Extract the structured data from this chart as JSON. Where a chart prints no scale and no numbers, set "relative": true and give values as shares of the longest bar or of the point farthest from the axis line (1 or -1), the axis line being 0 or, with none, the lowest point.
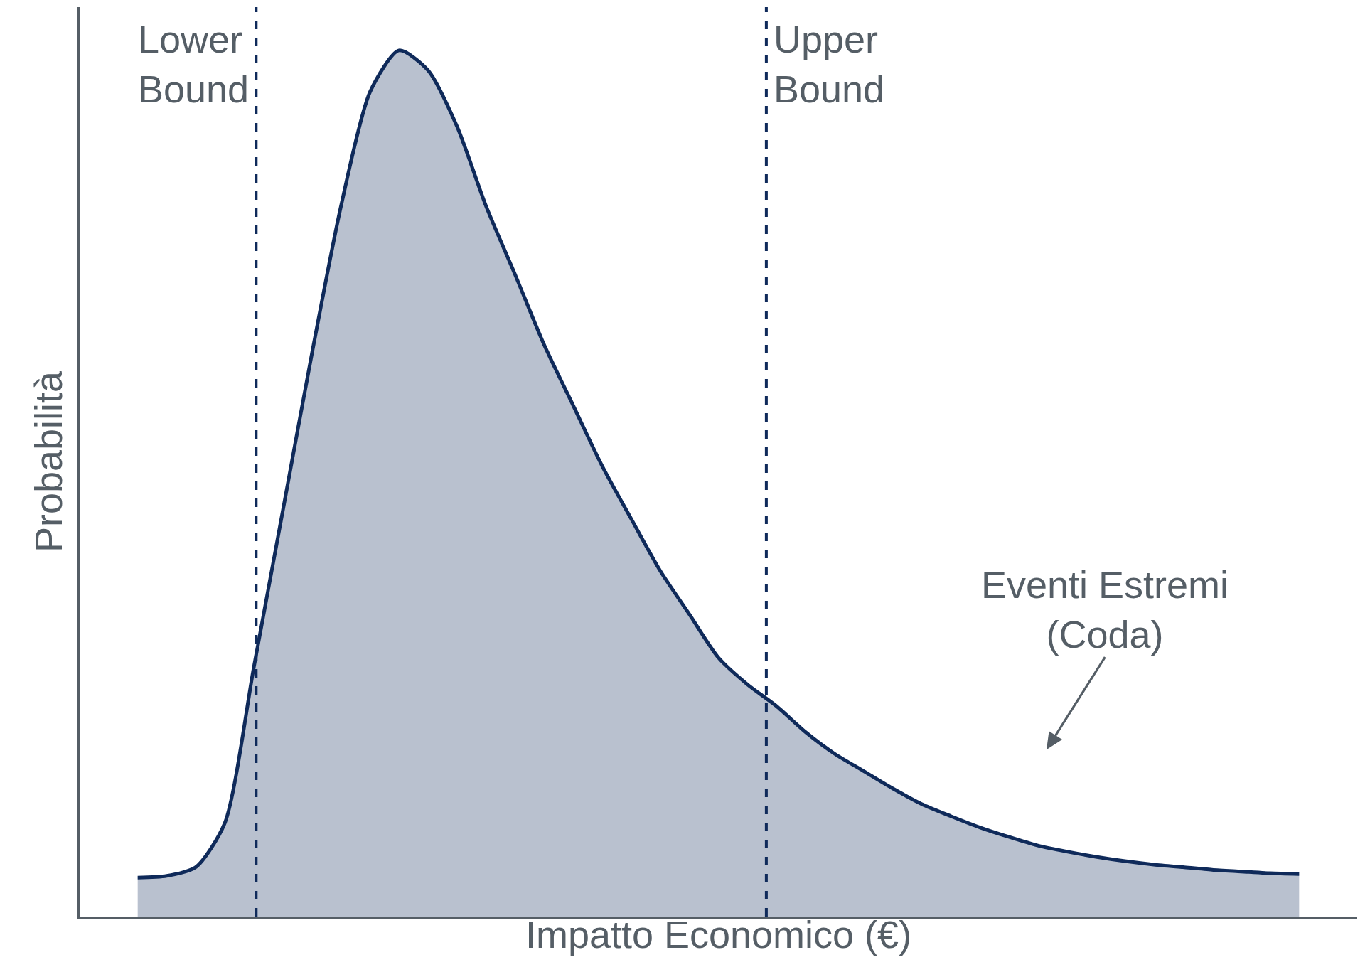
{
  "chart_data": {
    "type": "area",
    "relative": true,
    "xlabel": "Impatto Economico (€)",
    "ylabel": "Probabilità",
    "categories": [
      null,
      null,
      null,
      null,
      null,
      null,
      null,
      null,
      null,
      null,
      null,
      null,
      null,
      null,
      null,
      null,
      null,
      null,
      null,
      null,
      null,
      null,
      null,
      null,
      null,
      null,
      null,
      null,
      null,
      null,
      null,
      null,
      null,
      null,
      null,
      null,
      null,
      null,
      null,
      null,
      null
    ],
    "series": [
      {
        "color": "#0f2a5a",
        "values": [
          0.045,
          0.047,
          0.057,
          0.108,
          0.288,
          0.469,
          0.65,
          0.82,
          0.952,
          1,
          0.977,
          0.912,
          0.82,
          0.741,
          0.66,
          0.59,
          0.52,
          0.459,
          0.399,
          0.349,
          0.299,
          0.268,
          0.243,
          0.213,
          0.188,
          0.168,
          0.148,
          0.13,
          0.116,
          0.103,
          0.092,
          0.082,
          0.075,
          0.069,
          0.064,
          0.06,
          0.057,
          0.054,
          0.052,
          0.05,
          0.049
        ]
      }
    ],
    "annotations": [
      "Lower Bound",
      "Upper Bound",
      "Eventi Estremi (Coda)"
    ]
  }
}
